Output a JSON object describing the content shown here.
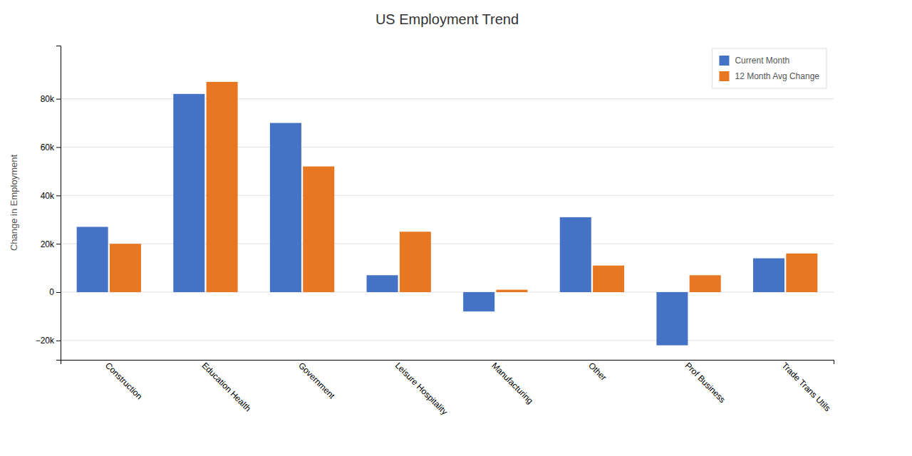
{
  "chart_data": {
    "type": "bar",
    "title": "US Employment Trend",
    "ylabel": "Change in Employment",
    "categories": [
      "Construction",
      "Education Health",
      "Government",
      "Leisure Hospitality",
      "Manufacturing",
      "Other",
      "Prof Business",
      "Trade Trans Utils"
    ],
    "series": [
      {
        "name": "Current Month",
        "color": "#4472C4",
        "values": [
          27000,
          82000,
          70000,
          7000,
          -8000,
          31000,
          -22000,
          14000
        ]
      },
      {
        "name": "12 Month Avg Change",
        "color": "#E87722",
        "values": [
          20000,
          87000,
          52000,
          25000,
          1000,
          11000,
          7000,
          16000
        ]
      }
    ],
    "ylim": [
      -28000,
      102000
    ],
    "yticks": [
      {
        "value": -20000,
        "label": "−20k"
      },
      0,
      {
        "value": 20000,
        "label": "20k"
      },
      {
        "value": 40000,
        "label": "40k"
      },
      {
        "value": 60000,
        "label": "60k"
      },
      {
        "value": 80000,
        "label": "80k"
      }
    ],
    "grid": true,
    "legend": "upper right"
  }
}
